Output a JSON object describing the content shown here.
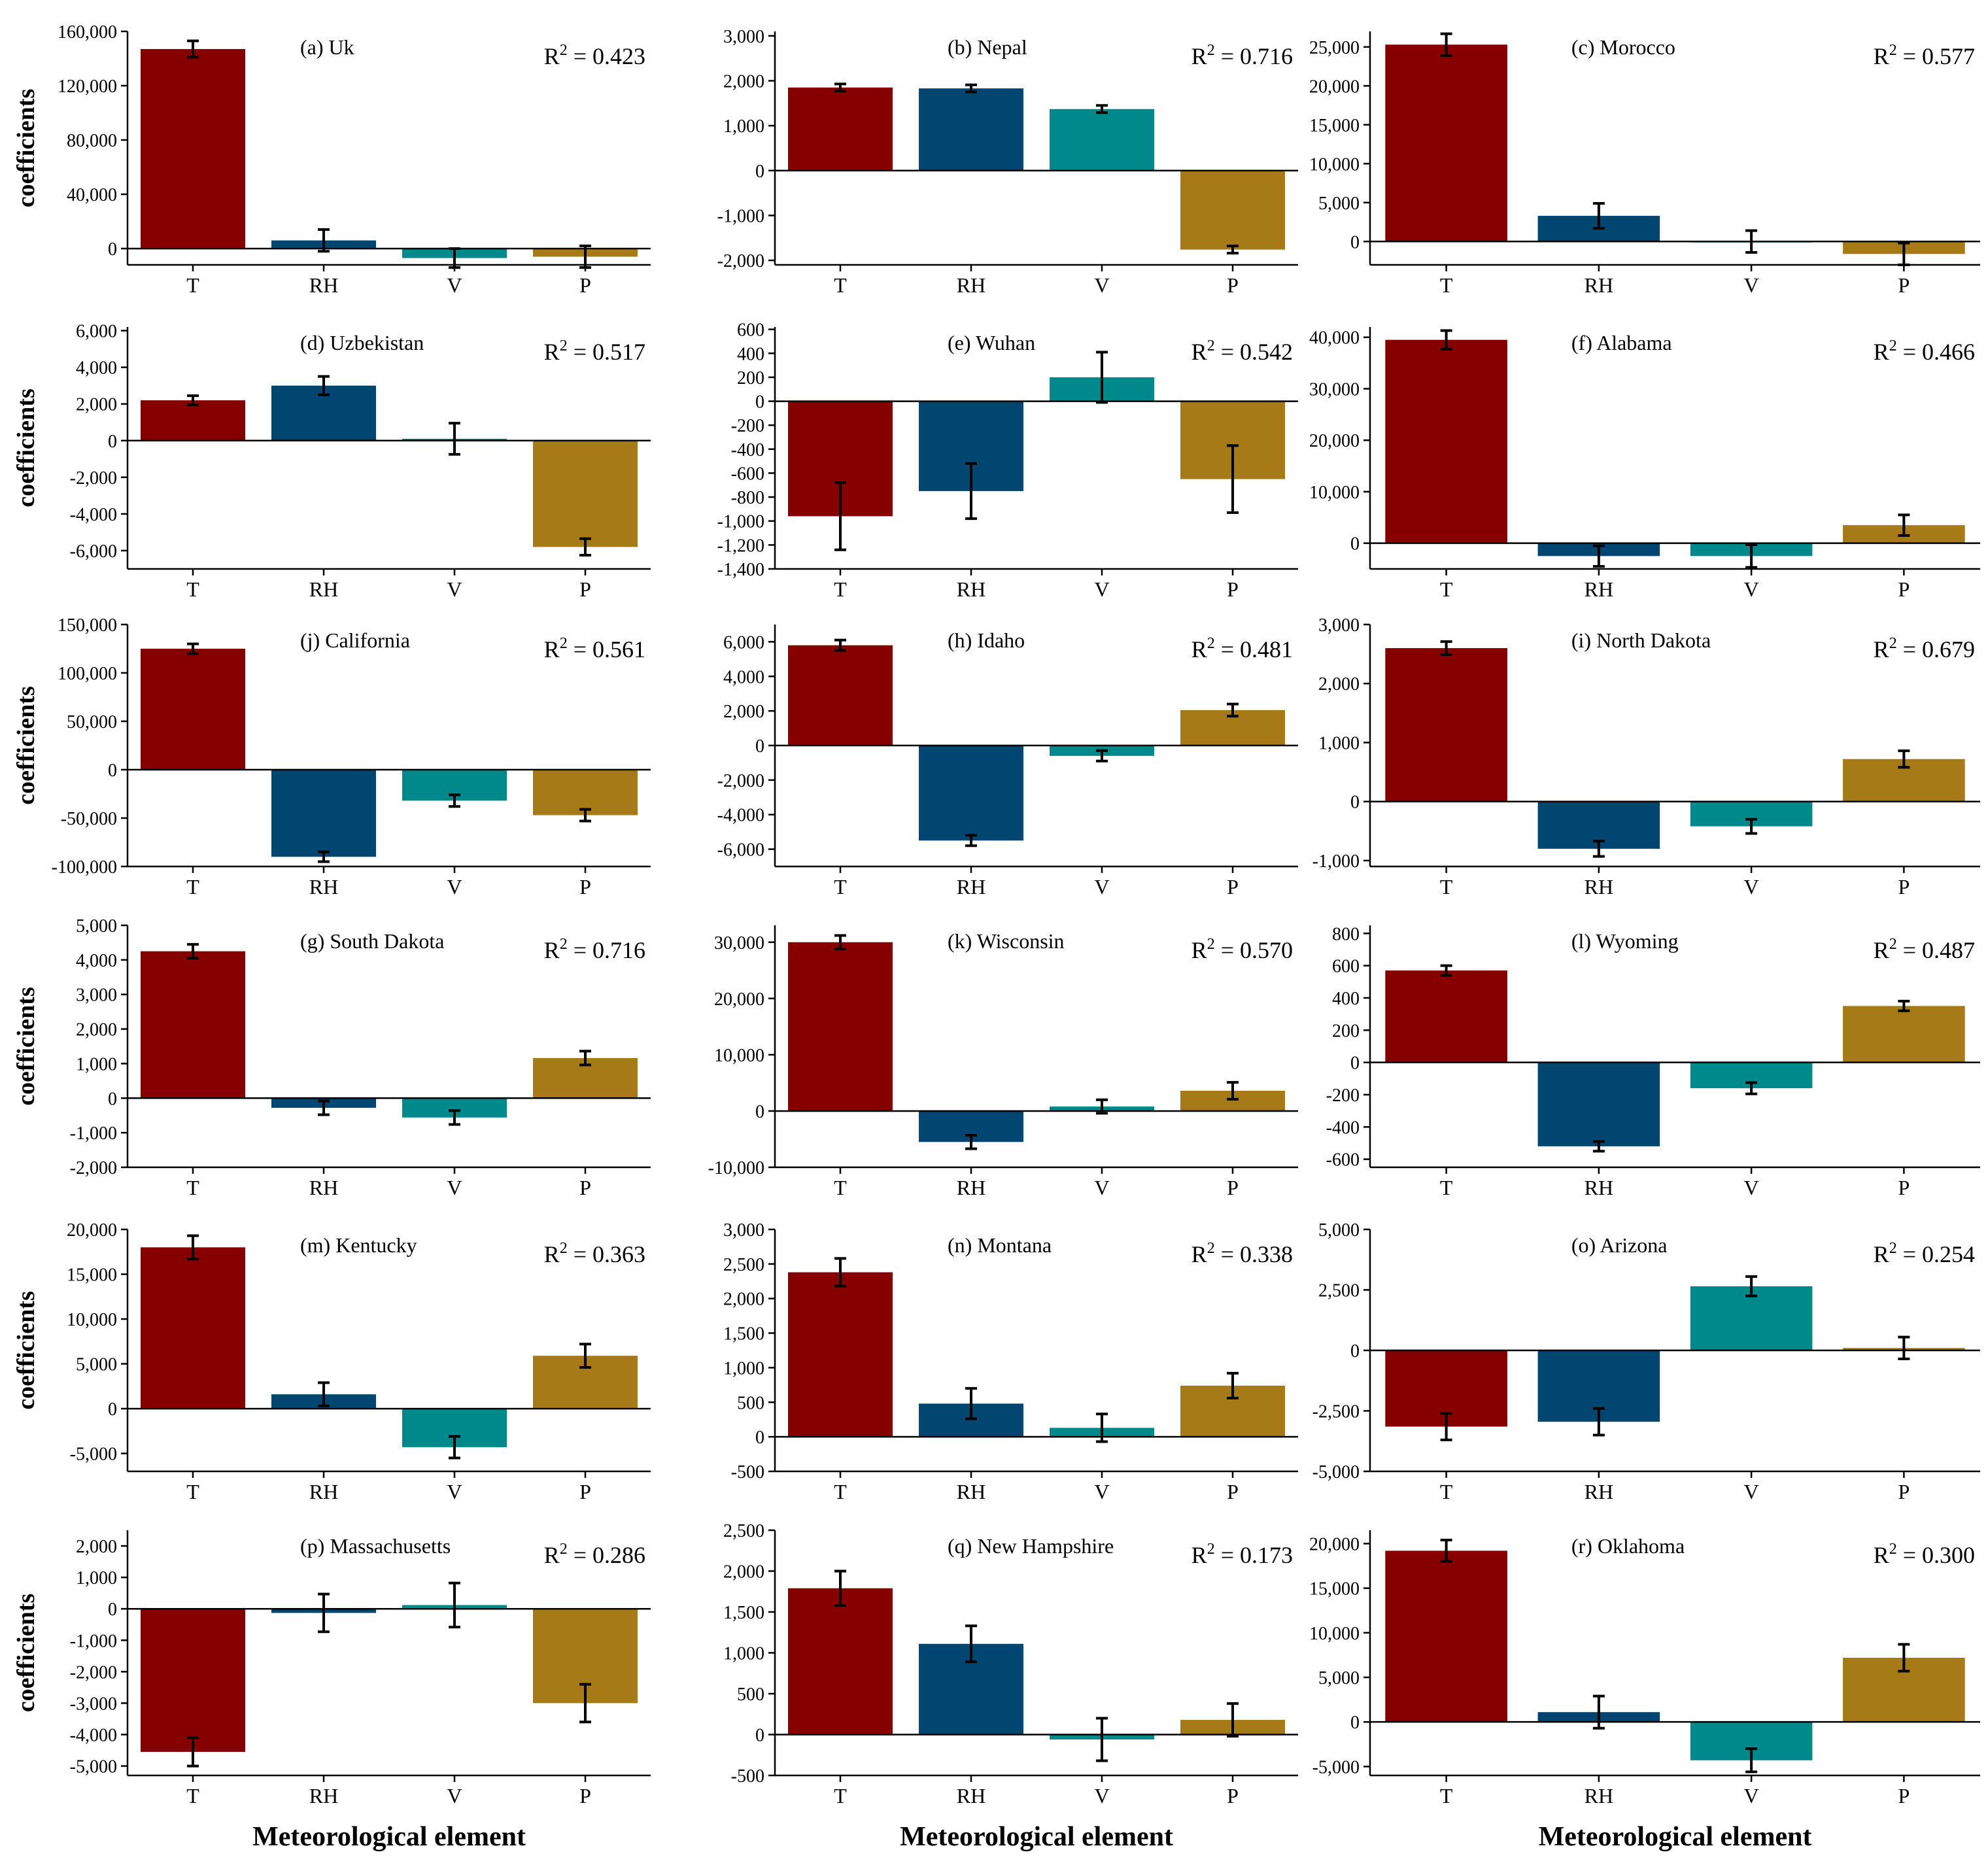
{
  "figure": {
    "category_labels": [
      "T",
      "RH",
      "V",
      "P"
    ],
    "bar_colors": [
      "#870000",
      "#004670",
      "#00898a",
      "#a77a18"
    ],
    "ylabel": "coefficients",
    "xlabel": "Meteorological element"
  },
  "chart_data": [
    {
      "type": "bar",
      "title": "(a) Uk",
      "r2": "0.423",
      "categories": [
        "T",
        "RH",
        "V",
        "P"
      ],
      "values": [
        147000,
        6000,
        -7000,
        -6000
      ],
      "errors": [
        6000,
        8000,
        7000,
        8000
      ],
      "ylim": [
        -12000,
        160000
      ],
      "yticks": [
        0,
        40000,
        80000,
        120000,
        160000
      ],
      "tick_labels": [
        "0",
        "40,000",
        "80,000",
        "120,000",
        "160,000"
      ],
      "xlabel": "",
      "ylabel": "coefficients"
    },
    {
      "type": "bar",
      "title": "(b) Nepal",
      "r2": "0.716",
      "categories": [
        "T",
        "RH",
        "V",
        "P"
      ],
      "values": [
        1850,
        1830,
        1370,
        -1760
      ],
      "errors": [
        80,
        80,
        80,
        80
      ],
      "ylim": [
        -2100,
        3100
      ],
      "yticks": [
        -2000,
        -1000,
        0,
        1000,
        2000,
        3000
      ],
      "tick_labels": [
        "-2,000",
        "-1,000",
        "0",
        "1,000",
        "2,000",
        "3,000"
      ],
      "xlabel": "",
      "ylabel": ""
    },
    {
      "type": "bar",
      "title": "(c) Morocco",
      "r2": "0.577",
      "categories": [
        "T",
        "RH",
        "V",
        "P"
      ],
      "values": [
        25300,
        3300,
        0,
        -1600
      ],
      "errors": [
        1400,
        1600,
        1400,
        1400
      ],
      "ylim": [
        -3000,
        27000
      ],
      "yticks": [
        0,
        5000,
        10000,
        15000,
        20000,
        25000
      ],
      "tick_labels": [
        "0",
        "5,000",
        "10,000",
        "15,000",
        "20,000",
        "25,000"
      ],
      "xlabel": "",
      "ylabel": ""
    },
    {
      "type": "bar",
      "title": "(d) Uzbekistan",
      "r2": "0.517",
      "categories": [
        "T",
        "RH",
        "V",
        "P"
      ],
      "values": [
        2200,
        3000,
        100,
        -5800
      ],
      "errors": [
        250,
        500,
        850,
        450
      ],
      "ylim": [
        -7000,
        6200
      ],
      "yticks": [
        -6000,
        -4000,
        -2000,
        0,
        2000,
        4000,
        6000
      ],
      "tick_labels": [
        "-6,000",
        "-4,000",
        "-2,000",
        "0",
        "2,000",
        "4,000",
        "6,000"
      ],
      "xlabel": "",
      "ylabel": "coefficients"
    },
    {
      "type": "bar",
      "title": "(e) Wuhan",
      "r2": "0.542",
      "categories": [
        "T",
        "RH",
        "V",
        "P"
      ],
      "values": [
        -960,
        -750,
        200,
        -650
      ],
      "errors": [
        280,
        230,
        210,
        280
      ],
      "ylim": [
        -1400,
        620
      ],
      "yticks": [
        -1400,
        -1200,
        -1000,
        -800,
        -600,
        -400,
        -200,
        0,
        200,
        400,
        600
      ],
      "tick_labels": [
        "-1,400",
        "-1,200",
        "-1,000",
        "-800",
        "-600",
        "-400",
        "-200",
        "0",
        "200",
        "400",
        "600"
      ],
      "xlabel": "",
      "ylabel": ""
    },
    {
      "type": "bar",
      "title": "(f) Alabama",
      "r2": "0.466",
      "categories": [
        "T",
        "RH",
        "V",
        "P"
      ],
      "values": [
        39500,
        -2500,
        -2500,
        3500
      ],
      "errors": [
        1800,
        2000,
        2200,
        2000
      ],
      "ylim": [
        -5000,
        42000
      ],
      "yticks": [
        0,
        10000,
        20000,
        30000,
        40000
      ],
      "tick_labels": [
        "0",
        "10,000",
        "20,000",
        "30,000",
        "40,000"
      ],
      "xlabel": "",
      "ylabel": ""
    },
    {
      "type": "bar",
      "title": "(j) California",
      "r2": "0.561",
      "categories": [
        "T",
        "RH",
        "V",
        "P"
      ],
      "values": [
        125000,
        -90000,
        -32000,
        -47000
      ],
      "errors": [
        5000,
        5000,
        6000,
        6000
      ],
      "ylim": [
        -100000,
        150000
      ],
      "yticks": [
        -100000,
        -50000,
        0,
        50000,
        100000,
        150000
      ],
      "tick_labels": [
        "-100,000",
        "-50,000",
        "0",
        "50,000",
        "100,000",
        "150,000"
      ],
      "xlabel": "",
      "ylabel": "coefficients"
    },
    {
      "type": "bar",
      "title": "(h) Idaho",
      "r2": "0.481",
      "categories": [
        "T",
        "RH",
        "V",
        "P"
      ],
      "values": [
        5800,
        -5500,
        -600,
        2050
      ],
      "errors": [
        300,
        300,
        300,
        350
      ],
      "ylim": [
        -7000,
        7000
      ],
      "yticks": [
        -6000,
        -4000,
        -2000,
        0,
        2000,
        4000,
        6000
      ],
      "tick_labels": [
        "-6,000",
        "-4,000",
        "-2,000",
        "0",
        "2,000",
        "4,000",
        "6,000"
      ],
      "xlabel": "",
      "ylabel": ""
    },
    {
      "type": "bar",
      "title": "(i) North Dakota",
      "r2": "0.679",
      "categories": [
        "T",
        "RH",
        "V",
        "P"
      ],
      "values": [
        2600,
        -800,
        -420,
        720
      ],
      "errors": [
        110,
        130,
        120,
        140
      ],
      "ylim": [
        -1100,
        3000
      ],
      "yticks": [
        -1000,
        0,
        1000,
        2000,
        3000
      ],
      "tick_labels": [
        "-1,000",
        "0",
        "1,000",
        "2,000",
        "3,000"
      ],
      "xlabel": "",
      "ylabel": ""
    },
    {
      "type": "bar",
      "title": "(g) South Dakota",
      "r2": "0.716",
      "categories": [
        "T",
        "RH",
        "V",
        "P"
      ],
      "values": [
        4250,
        -280,
        -560,
        1160
      ],
      "errors": [
        200,
        200,
        200,
        200
      ],
      "ylim": [
        -2000,
        5000
      ],
      "yticks": [
        -2000,
        -1000,
        0,
        1000,
        2000,
        3000,
        4000,
        5000
      ],
      "tick_labels": [
        "-2,000",
        "-1,000",
        "0",
        "1,000",
        "2,000",
        "3,000",
        "4,000",
        "5,000"
      ],
      "xlabel": "",
      "ylabel": "coefficients"
    },
    {
      "type": "bar",
      "title": "(k) Wisconsin",
      "r2": "0.570",
      "categories": [
        "T",
        "RH",
        "V",
        "P"
      ],
      "values": [
        30000,
        -5500,
        800,
        3600
      ],
      "errors": [
        1200,
        1200,
        1200,
        1500
      ],
      "ylim": [
        -10000,
        33000
      ],
      "yticks": [
        -10000,
        0,
        10000,
        20000,
        30000
      ],
      "tick_labels": [
        "-10,000",
        "0",
        "10,000",
        "20,000",
        "30,000"
      ],
      "xlabel": "",
      "ylabel": ""
    },
    {
      "type": "bar",
      "title": "(l) Wyoming",
      "r2": "0.487",
      "categories": [
        "T",
        "RH",
        "V",
        "P"
      ],
      "values": [
        570,
        -520,
        -160,
        350
      ],
      "errors": [
        30,
        30,
        35,
        30
      ],
      "ylim": [
        -650,
        850
      ],
      "yticks": [
        -600,
        -400,
        -200,
        0,
        200,
        400,
        600,
        800
      ],
      "tick_labels": [
        "-600",
        "-400",
        "-200",
        "0",
        "200",
        "400",
        "600",
        "800"
      ],
      "xlabel": "",
      "ylabel": ""
    },
    {
      "type": "bar",
      "title": "(m) Kentucky",
      "r2": "0.363",
      "categories": [
        "T",
        "RH",
        "V",
        "P"
      ],
      "values": [
        18000,
        1600,
        -4300,
        5900
      ],
      "errors": [
        1300,
        1300,
        1200,
        1300
      ],
      "ylim": [
        -7000,
        20000
      ],
      "yticks": [
        -5000,
        0,
        5000,
        10000,
        15000,
        20000
      ],
      "tick_labels": [
        "-5,000",
        "0",
        "5,000",
        "10,000",
        "15,000",
        "20,000"
      ],
      "xlabel": "",
      "ylabel": "coefficients"
    },
    {
      "type": "bar",
      "title": "(n) Montana",
      "r2": "0.338",
      "categories": [
        "T",
        "RH",
        "V",
        "P"
      ],
      "values": [
        2380,
        480,
        130,
        740
      ],
      "errors": [
        200,
        220,
        200,
        180
      ],
      "ylim": [
        -500,
        3000
      ],
      "yticks": [
        -500,
        0,
        500,
        1000,
        1500,
        2000,
        2500,
        3000
      ],
      "tick_labels": [
        "-500",
        "0",
        "500",
        "1,000",
        "1,500",
        "2,000",
        "2,500",
        "3,000"
      ],
      "xlabel": "",
      "ylabel": ""
    },
    {
      "type": "bar",
      "title": "(o) Arizona",
      "r2": "0.254",
      "categories": [
        "T",
        "RH",
        "V",
        "P"
      ],
      "values": [
        -3150,
        -2950,
        2650,
        100
      ],
      "errors": [
        550,
        550,
        400,
        450
      ],
      "ylim": [
        -5000,
        5000
      ],
      "yticks": [
        -5000,
        -2500,
        0,
        2500,
        5000
      ],
      "tick_labels": [
        "-5,000",
        "-2,500",
        "0",
        "2,500",
        "5,000"
      ],
      "xlabel": "",
      "ylabel": ""
    },
    {
      "type": "bar",
      "title": "(p) Massachusetts",
      "r2": "0.286",
      "categories": [
        "T",
        "RH",
        "V",
        "P"
      ],
      "values": [
        -4550,
        -130,
        120,
        -3000
      ],
      "errors": [
        450,
        600,
        700,
        600
      ],
      "ylim": [
        -5300,
        2500
      ],
      "yticks": [
        -5000,
        -4000,
        -3000,
        -2000,
        -1000,
        0,
        1000,
        2000
      ],
      "tick_labels": [
        "-5,000",
        "-4,000",
        "-3,000",
        "-2,000",
        "-1,000",
        "0",
        "1,000",
        "2,000"
      ],
      "xlabel": "Meteorological element",
      "ylabel": "coefficients"
    },
    {
      "type": "bar",
      "title": "(q) New Hampshire",
      "r2": "0.173",
      "categories": [
        "T",
        "RH",
        "V",
        "P"
      ],
      "values": [
        1790,
        1110,
        -60,
        180
      ],
      "errors": [
        210,
        220,
        260,
        200
      ],
      "ylim": [
        -500,
        2500
      ],
      "yticks": [
        -500,
        0,
        500,
        1000,
        1500,
        2000,
        2500
      ],
      "tick_labels": [
        "-500",
        "0",
        "500",
        "1,000",
        "1,500",
        "2,000",
        "2,500"
      ],
      "xlabel": "Meteorological element",
      "ylabel": ""
    },
    {
      "type": "bar",
      "title": "(r) Oklahoma",
      "r2": "0.300",
      "categories": [
        "T",
        "RH",
        "V",
        "P"
      ],
      "values": [
        19200,
        1100,
        -4300,
        7200
      ],
      "errors": [
        1200,
        1800,
        1300,
        1500
      ],
      "ylim": [
        -6000,
        21500
      ],
      "yticks": [
        -5000,
        0,
        5000,
        10000,
        15000,
        20000
      ],
      "tick_labels": [
        "-5,000",
        "0",
        "5,000",
        "10,000",
        "15,000",
        "20,000"
      ],
      "xlabel": "Meteorological element",
      "ylabel": ""
    }
  ]
}
